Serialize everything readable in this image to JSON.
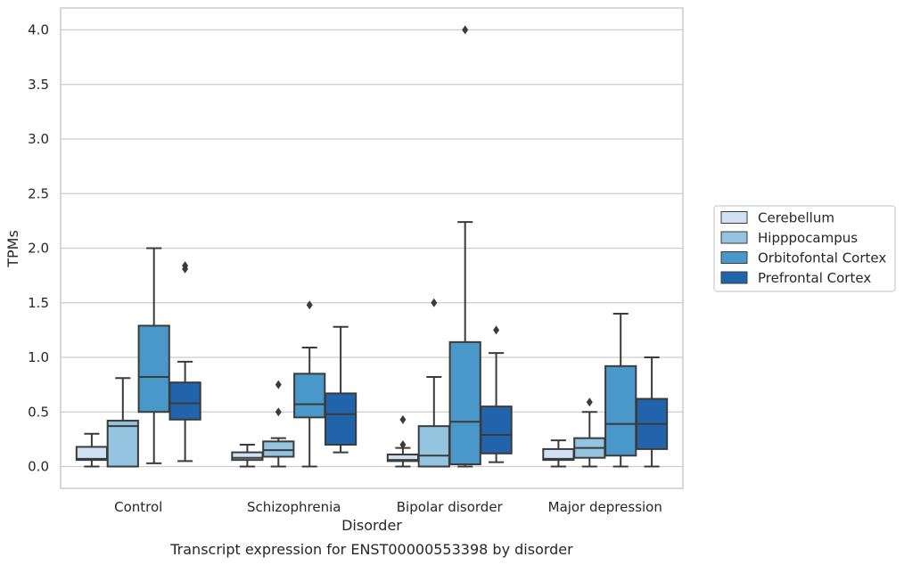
{
  "chart_data": {
    "type": "box",
    "title": "",
    "caption": "Transcript expression for ENST00000553398 by disorder",
    "xlabel": "Disorder",
    "ylabel": "TPMs",
    "ylim": [
      -0.2,
      4.2
    ],
    "yticks": [
      0.0,
      0.5,
      1.0,
      1.5,
      2.0,
      2.5,
      3.0,
      3.5,
      4.0
    ],
    "ytick_labels": [
      "0.0",
      "0.5",
      "1.0",
      "1.5",
      "2.0",
      "2.5",
      "3.0",
      "3.5",
      "4.0"
    ],
    "grid": "horizontal",
    "legend_position": "right",
    "categories": [
      "Control",
      "Schizophrenia",
      "Bipolar disorder",
      "Major depression"
    ],
    "series": [
      {
        "name": "Cerebellum",
        "color": "#d0e1f2",
        "boxes": [
          {
            "whislo": 0.0,
            "q1": 0.06,
            "med": 0.07,
            "q3": 0.18,
            "whishi": 0.3,
            "fliers": []
          },
          {
            "whislo": 0.0,
            "q1": 0.06,
            "med": 0.08,
            "q3": 0.13,
            "whishi": 0.2,
            "fliers": []
          },
          {
            "whislo": 0.0,
            "q1": 0.05,
            "med": 0.06,
            "q3": 0.11,
            "whishi": 0.17,
            "fliers": [
              0.2,
              0.43
            ]
          },
          {
            "whislo": 0.0,
            "q1": 0.06,
            "med": 0.07,
            "q3": 0.16,
            "whishi": 0.24,
            "fliers": []
          }
        ]
      },
      {
        "name": "Hipppocampus",
        "color": "#94c4df",
        "boxes": [
          {
            "whislo": 0.0,
            "q1": 0.0,
            "med": 0.37,
            "q3": 0.42,
            "whishi": 0.81,
            "fliers": []
          },
          {
            "whislo": 0.0,
            "q1": 0.09,
            "med": 0.15,
            "q3": 0.23,
            "whishi": 0.26,
            "fliers": [
              0.5,
              0.75
            ]
          },
          {
            "whislo": 0.0,
            "q1": 0.0,
            "med": 0.1,
            "q3": 0.37,
            "whishi": 0.82,
            "fliers": [
              1.5
            ]
          },
          {
            "whislo": 0.0,
            "q1": 0.08,
            "med": 0.17,
            "q3": 0.26,
            "whishi": 0.5,
            "fliers": [
              0.59
            ]
          }
        ]
      },
      {
        "name": "Orbitofontal Cortex",
        "color": "#4a98c9",
        "boxes": [
          {
            "whislo": 0.03,
            "q1": 0.5,
            "med": 0.82,
            "q3": 1.29,
            "whishi": 2.0,
            "fliers": []
          },
          {
            "whislo": 0.0,
            "q1": 0.45,
            "med": 0.57,
            "q3": 0.85,
            "whishi": 1.09,
            "fliers": [
              1.48
            ]
          },
          {
            "whislo": 0.0,
            "q1": 0.02,
            "med": 0.41,
            "q3": 1.14,
            "whishi": 2.24,
            "fliers": [
              4.0
            ]
          },
          {
            "whislo": 0.0,
            "q1": 0.1,
            "med": 0.39,
            "q3": 0.92,
            "whishi": 1.4,
            "fliers": []
          }
        ]
      },
      {
        "name": "Prefrontal Cortex",
        "color": "#2164ab",
        "boxes": [
          {
            "whislo": 0.05,
            "q1": 0.43,
            "med": 0.58,
            "q3": 0.77,
            "whishi": 0.96,
            "fliers": [
              1.81,
              1.84
            ]
          },
          {
            "whislo": 0.13,
            "q1": 0.2,
            "med": 0.48,
            "q3": 0.67,
            "whishi": 1.28,
            "fliers": []
          },
          {
            "whislo": 0.04,
            "q1": 0.12,
            "med": 0.29,
            "q3": 0.55,
            "whishi": 1.04,
            "fliers": [
              1.25
            ]
          },
          {
            "whislo": 0.0,
            "q1": 0.16,
            "med": 0.39,
            "q3": 0.62,
            "whishi": 1.0,
            "fliers": []
          }
        ]
      }
    ]
  }
}
